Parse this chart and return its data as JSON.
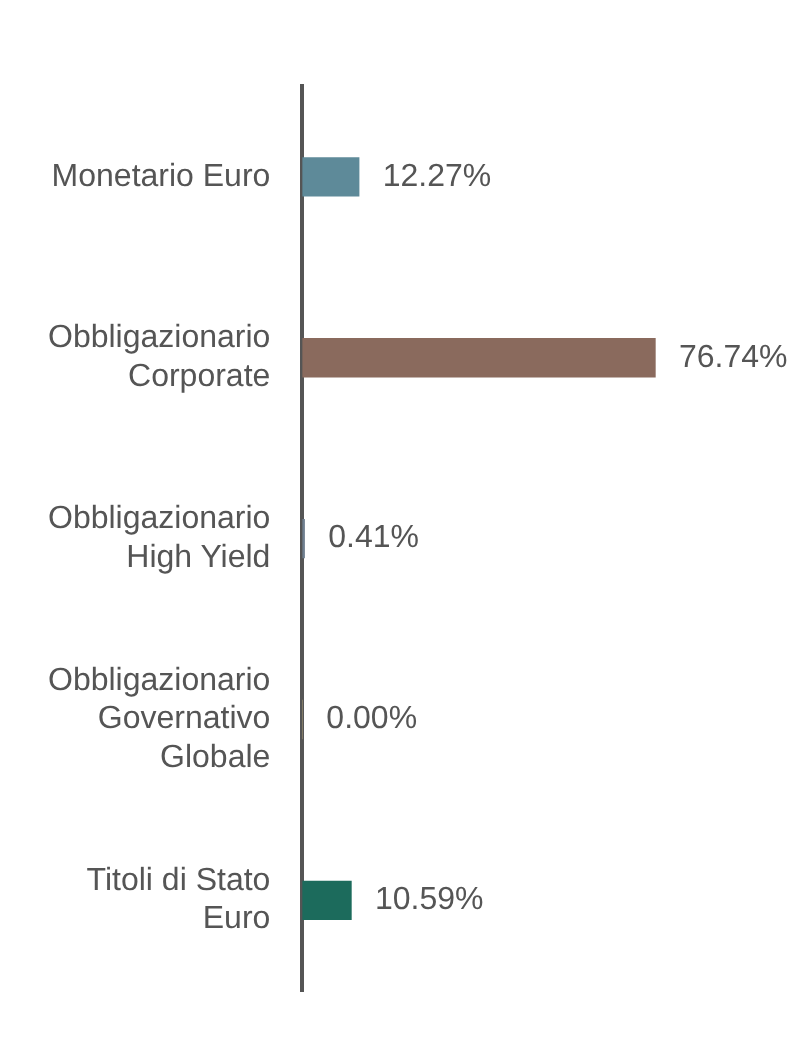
{
  "chart_data": {
    "type": "bar",
    "orientation": "horizontal",
    "categories": [
      "Monetario Euro",
      "Obbligazionario Corporate",
      "Obbligazionario High Yield",
      "Obbligazionario Governativo Globale",
      "Titoli di Stato Euro"
    ],
    "values": [
      12.27,
      76.74,
      0.41,
      0.0,
      10.59
    ],
    "colors": [
      "#5e8a99",
      "#8a6a5d",
      "#6f7f8f",
      "#9a8f70",
      "#1c6b5c"
    ],
    "value_labels": [
      "12.27%",
      "76.74%",
      "0.41%",
      "0.00%",
      "10.59%"
    ],
    "grid": false,
    "legend": false
  }
}
